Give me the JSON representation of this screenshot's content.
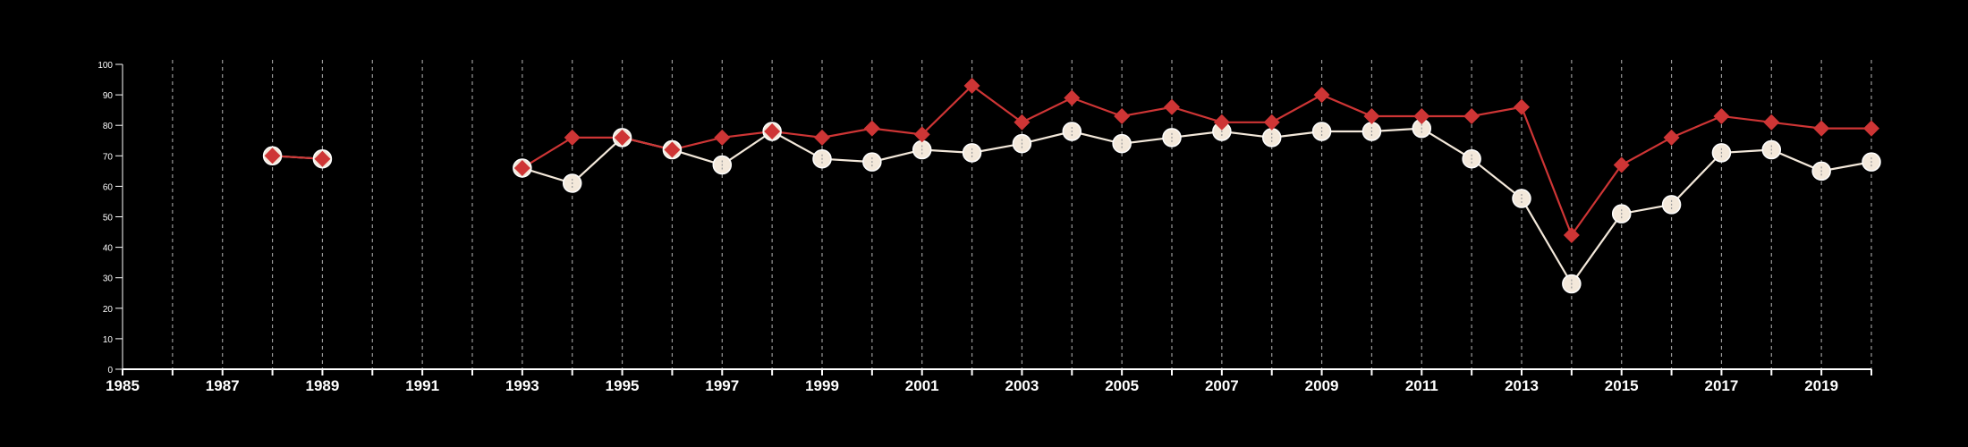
{
  "chart_data": {
    "type": "line",
    "title": "",
    "xlabel": "",
    "ylabel": "",
    "xlim": [
      1985,
      2020
    ],
    "ylim": [
      0,
      100
    ],
    "x_ticks": [
      "1985",
      "1987",
      "1989",
      "1991",
      "1993",
      "1995",
      "1997",
      "1999",
      "2001",
      "2003",
      "2005",
      "2007",
      "2009",
      "2011",
      "2013",
      "2015",
      "2017",
      "2019"
    ],
    "y_ticks": [
      "0",
      "10",
      "20",
      "30",
      "40",
      "50",
      "60",
      "70",
      "80",
      "90",
      "100"
    ],
    "grid": "vertical dashed lines at every year",
    "legend": "none",
    "x": [
      1988,
      1989,
      1993,
      1994,
      1995,
      1996,
      1997,
      1998,
      1999,
      2000,
      2001,
      2002,
      2003,
      2004,
      2005,
      2006,
      2007,
      2008,
      2009,
      2010,
      2011,
      2012,
      2013,
      2014,
      2015,
      2016,
      2017,
      2018,
      2019,
      2020
    ],
    "series": [
      {
        "color": "#ce3535",
        "marker": "diamond",
        "values": [
          70,
          69,
          66,
          76,
          76,
          72,
          76,
          78,
          76,
          79,
          77,
          93,
          81,
          89,
          83,
          86,
          81,
          81,
          90,
          83,
          83,
          83,
          86,
          44,
          67,
          76,
          83,
          81,
          79,
          79
        ]
      },
      {
        "color": "#f3e8da",
        "marker": "circle",
        "values": [
          70,
          69,
          66,
          61,
          76,
          72,
          67,
          78,
          69,
          68,
          72,
          71,
          74,
          78,
          74,
          76,
          78,
          76,
          78,
          78,
          79,
          69,
          56,
          28,
          51,
          54,
          71,
          72,
          65,
          68
        ]
      }
    ]
  }
}
